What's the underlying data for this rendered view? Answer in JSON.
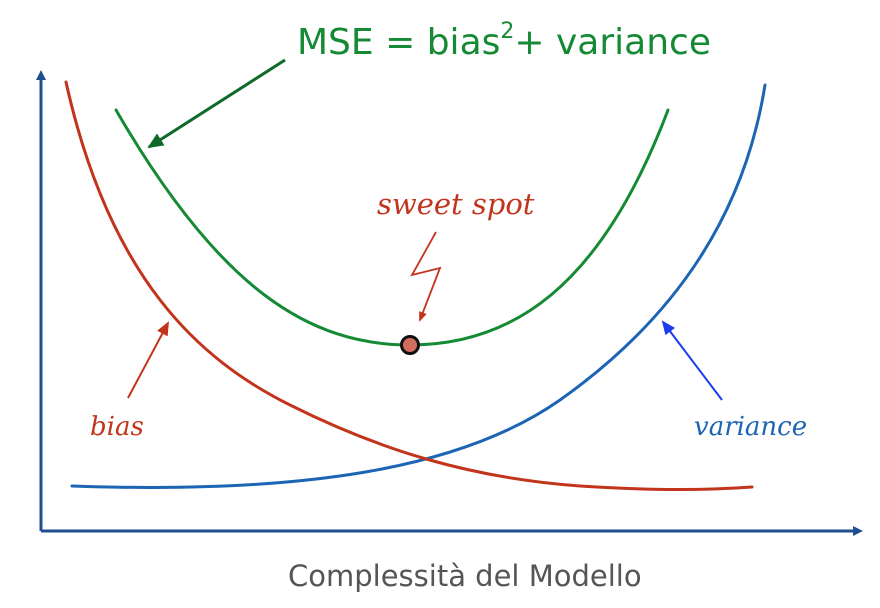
{
  "title": {
    "prefix": "MSE = bias",
    "superscript": "2",
    "suffix": "+ variance"
  },
  "labels": {
    "sweet_spot": "sweet spot",
    "bias": "bias",
    "variance": "variance",
    "x_axis": "Complessità del Modello"
  },
  "colors": {
    "mse": "#158a35",
    "bias": "#c2341c",
    "variance": "#1c64b4",
    "axis": "#1f4f8f",
    "variance_arrow": "#1d3cf0",
    "sweet_dot_fill": "#d36e5e",
    "x_label": "#555555"
  }
}
